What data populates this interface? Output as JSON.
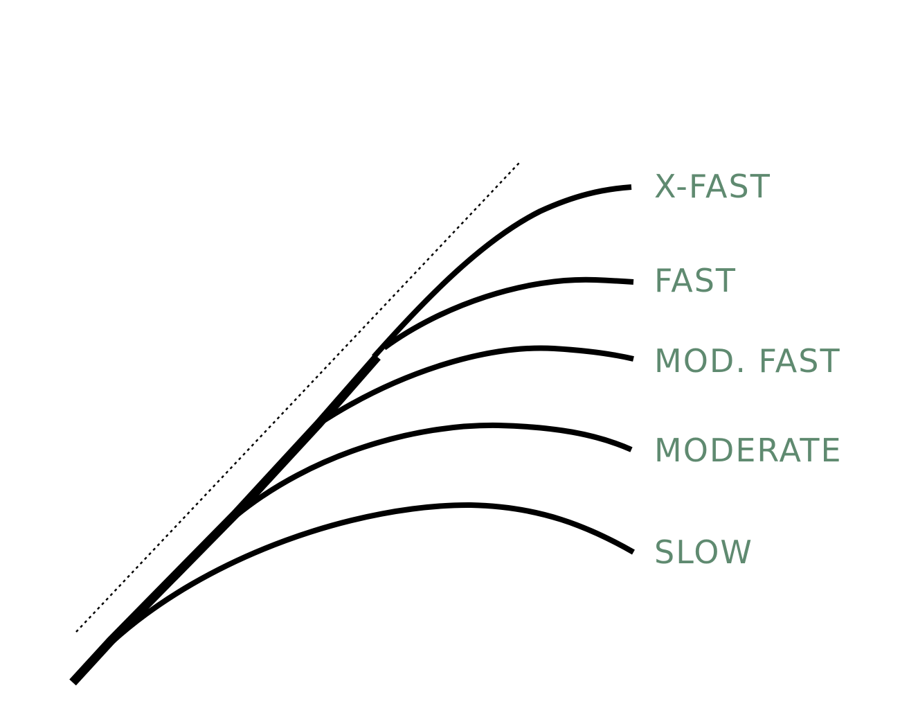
{
  "labels": {
    "xfast": "X-FAST",
    "fast": "FAST",
    "modfast": "MOD. FAST",
    "moderate": "MODERATE",
    "slow": "SLOW"
  },
  "colors": {
    "label": "#5f8a70",
    "curve": "#000000",
    "reference_line": "#000000"
  }
}
